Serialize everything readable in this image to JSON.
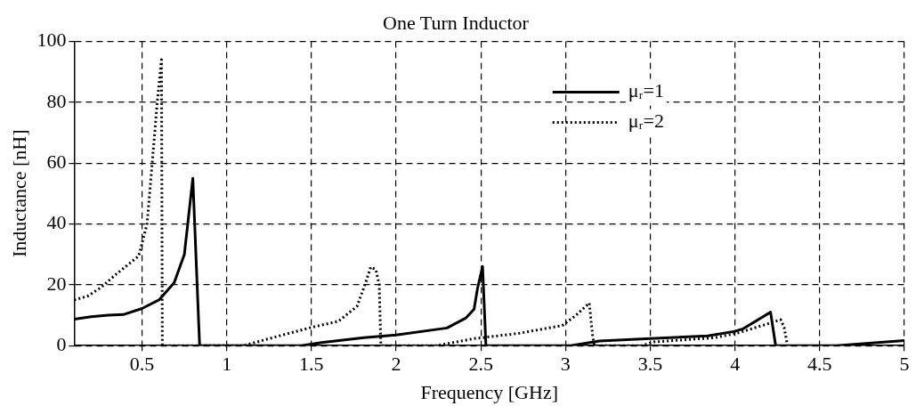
{
  "chart_data": {
    "type": "line",
    "title": "One Turn Inductor",
    "xlabel": "Frequency [GHz]",
    "ylabel": "Inductance [nH]",
    "xlim": [
      0.1,
      5
    ],
    "xticks": [
      0.5,
      1,
      1.5,
      2,
      2.5,
      3,
      3.5,
      4,
      4.5,
      5
    ],
    "ylim": [
      0,
      100
    ],
    "yticks": [
      0,
      20,
      40,
      60,
      80,
      100
    ],
    "grid": true,
    "legend": "top right",
    "marker": "none",
    "series": [
      {
        "name": "μᵣ=1",
        "color": "#000000",
        "line_style": "solid",
        "x": [
          0.1,
          0.2,
          0.3,
          0.39,
          0.5,
          0.6,
          0.69,
          0.75,
          0.8,
          0.84,
          1.44,
          1.56,
          1.81,
          2.0,
          2.3,
          2.41,
          2.46,
          2.48,
          2.51,
          2.53,
          3.03,
          3.2,
          3.5,
          3.84,
          4.0,
          4.05,
          4.21,
          4.24,
          4.6,
          5.0
        ],
        "values": [
          8.7,
          9.5,
          10,
          10.2,
          12.2,
          15,
          20.7,
          30,
          55,
          0,
          0,
          1,
          2.6,
          3.5,
          5.8,
          9,
          12,
          18.7,
          26,
          0,
          0,
          1.5,
          2.3,
          3.2,
          4.7,
          5.6,
          11,
          0,
          0,
          1.7
        ]
      },
      {
        "name": "μᵣ=2",
        "color": "#000000",
        "line_style": "dotted",
        "x": [
          0.1,
          0.18,
          0.26,
          0.35,
          0.48,
          0.53,
          0.56,
          0.59,
          0.615,
          0.62,
          1.1,
          1.31,
          1.5,
          1.66,
          1.77,
          1.82,
          1.85,
          1.88,
          1.9,
          1.91,
          2.24,
          2.46,
          2.72,
          2.98,
          3.06,
          3.14,
          3.16,
          3.17,
          3.45,
          3.52,
          3.88,
          4.02,
          4.16,
          4.27,
          4.29,
          4.31
        ],
        "values": [
          15,
          16.3,
          19.2,
          23.6,
          29.4,
          40,
          60,
          80,
          94,
          0,
          0,
          3.2,
          6,
          8,
          13,
          20.7,
          25.8,
          25,
          20,
          0,
          0,
          2.3,
          4,
          6.6,
          9.9,
          14,
          3,
          0,
          0,
          1.2,
          2.6,
          4.2,
          6.6,
          8.5,
          6,
          0
        ]
      }
    ]
  }
}
